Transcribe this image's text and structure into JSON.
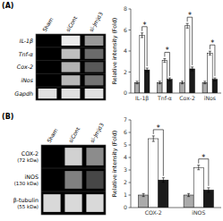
{
  "chart_data": [
    {
      "type": "heatmap",
      "title": "(A)",
      "categories": [
        "Sham",
        "siCont",
        "si-Jmjd3"
      ],
      "series": [
        {
          "name": "IL-1β",
          "values": [
            0.0,
            0.92,
            0.6
          ]
        },
        {
          "name": "Tnf-α",
          "values": [
            0.0,
            0.75,
            0.42
          ]
        },
        {
          "name": "Cox-2",
          "values": [
            0.0,
            0.7,
            0.35
          ]
        },
        {
          "name": "iNos",
          "values": [
            0.0,
            0.72,
            0.45
          ]
        },
        {
          "name": "Gapdh",
          "values": [
            0.88,
            0.88,
            0.88
          ]
        }
      ],
      "color_range": [
        0,
        1
      ]
    },
    {
      "type": "bar",
      "categories": [
        "IL-1β",
        "Tnf-α",
        "Cox-2",
        "iNos"
      ],
      "series": [
        {
          "color": "#aaaaaa",
          "values": [
            1.0,
            1.0,
            1.0,
            1.0
          ],
          "errors": [
            0.12,
            0.12,
            0.12,
            0.12
          ]
        },
        {
          "color": "#ffffff",
          "values": [
            5.5,
            3.1,
            6.4,
            3.8
          ],
          "errors": [
            0.22,
            0.18,
            0.22,
            0.18
          ]
        },
        {
          "color": "#1a1a1a",
          "values": [
            2.2,
            1.3,
            2.3,
            1.3
          ],
          "errors": [
            0.18,
            0.14,
            0.18,
            0.14
          ]
        }
      ],
      "ylim": [
        0,
        8
      ],
      "yticks": [
        0,
        2,
        4,
        6,
        8
      ],
      "ylabel": "Relative intensity (Fold)",
      "significance": [
        "*",
        "*",
        "*",
        "*"
      ],
      "grid": false
    },
    {
      "type": "heatmap",
      "title": "(B)",
      "categories": [
        "Sham",
        "siCont",
        "si-Jmjd3"
      ],
      "series": [
        {
          "name": "COX-2",
          "size_label": "(72 kDa)",
          "values": [
            0.0,
            0.82,
            0.55
          ]
        },
        {
          "name": "iNOS",
          "size_label": "(130 kDa)",
          "values": [
            0.0,
            0.5,
            0.28
          ]
        },
        {
          "name": "β-tubulin",
          "size_label": "(55 kDa)",
          "values": [
            0.85,
            0.85,
            0.85
          ]
        }
      ],
      "color_range": [
        0,
        1
      ]
    },
    {
      "type": "bar",
      "categories": [
        "COX-2",
        "iNOS"
      ],
      "series": [
        {
          "color": "#aaaaaa",
          "values": [
            1.0,
            1.0
          ],
          "errors": [
            0.12,
            0.12
          ]
        },
        {
          "color": "#ffffff",
          "values": [
            5.5,
            3.2
          ],
          "errors": [
            0.22,
            0.18
          ]
        },
        {
          "color": "#1a1a1a",
          "values": [
            2.2,
            1.4
          ],
          "errors": [
            0.18,
            0.18
          ]
        }
      ],
      "ylim": [
        0,
        7
      ],
      "yticks": [
        0,
        1,
        2,
        3,
        4,
        5,
        6,
        7
      ],
      "ylabel": "Relative intensity (Fold)",
      "significance": [
        "*",
        "*"
      ],
      "grid": false
    }
  ]
}
